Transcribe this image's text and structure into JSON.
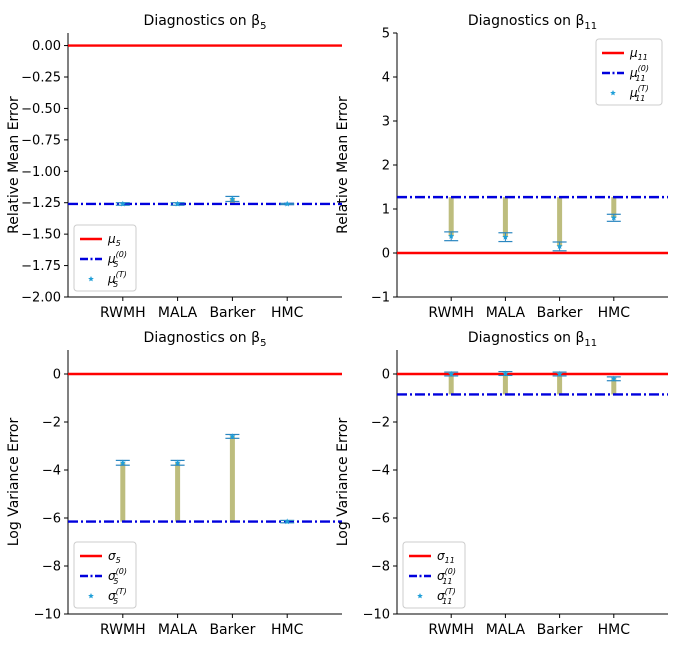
{
  "colors": {
    "true_line": "#ff0000",
    "init_line": "#0000dd",
    "bar": "#bdbd7e",
    "marker": "#1f9fd8",
    "error_cap": "#2a86c0"
  },
  "chart_data": [
    {
      "id": "top-left",
      "type": "scatter",
      "title": "Diagnostics on β",
      "title_sub": "5",
      "ylabel": "Relative Mean Error",
      "categories": [
        "RWMH",
        "MALA",
        "Barker",
        "HMC"
      ],
      "ylim": [
        -2.0,
        0.1
      ],
      "yticks": [
        0.0,
        -0.25,
        -0.5,
        -0.75,
        -1.0,
        -1.25,
        -1.5,
        -1.75,
        -2.0
      ],
      "ytick_labels": [
        "0.00",
        "−0.25",
        "−0.50",
        "−0.75",
        "−1.00",
        "−1.25",
        "−1.50",
        "−1.75",
        "−2.00"
      ],
      "true_value": 0.0,
      "init_value": -1.26,
      "estimates": [
        -1.26,
        -1.26,
        -1.22,
        -1.26
      ],
      "ci_low": [
        -1.27,
        -1.27,
        -1.24,
        -1.265
      ],
      "ci_high": [
        -1.25,
        -1.25,
        -1.2,
        -1.255
      ],
      "legend_position": "lower-left",
      "legend": [
        {
          "kind": "solid",
          "label": "μ",
          "sub": "5",
          "sup": ""
        },
        {
          "kind": "dashdot",
          "label": "μ",
          "sub": "5",
          "sup": "(0)"
        },
        {
          "kind": "star",
          "label": "μ",
          "sub": "5",
          "sup": "(T)"
        }
      ]
    },
    {
      "id": "top-right",
      "type": "scatter",
      "title": "Diagnostics on β",
      "title_sub": "11",
      "ylabel": "Relative Mean Error",
      "categories": [
        "RWMH",
        "MALA",
        "Barker",
        "HMC"
      ],
      "ylim": [
        -1,
        5
      ],
      "yticks": [
        -1,
        0,
        1,
        2,
        3,
        4,
        5
      ],
      "ytick_labels": [
        "−1",
        "0",
        "1",
        "2",
        "3",
        "4",
        "5"
      ],
      "true_value": 0.0,
      "init_value": 1.27,
      "estimates": [
        0.38,
        0.36,
        0.15,
        0.8
      ],
      "ci_low": [
        0.28,
        0.26,
        0.05,
        0.72
      ],
      "ci_high": [
        0.48,
        0.46,
        0.25,
        0.88
      ],
      "legend_position": "top-right",
      "legend": [
        {
          "kind": "solid",
          "label": "μ",
          "sub": "11",
          "sup": ""
        },
        {
          "kind": "dashdot",
          "label": "μ",
          "sub": "11",
          "sup": "(0)"
        },
        {
          "kind": "star",
          "label": "μ",
          "sub": "11",
          "sup": "(T)"
        }
      ]
    },
    {
      "id": "bottom-left",
      "type": "scatter",
      "title": "Diagnostics on β",
      "title_sub": "5",
      "ylabel": "Log Variance Error",
      "categories": [
        "RWMH",
        "MALA",
        "Barker",
        "HMC"
      ],
      "ylim": [
        -10,
        1
      ],
      "yticks": [
        0,
        -2,
        -4,
        -6,
        -8,
        -10
      ],
      "ytick_labels": [
        "0",
        "−2",
        "−4",
        "−6",
        "−8",
        "−10"
      ],
      "true_value": 0.0,
      "init_value": -6.15,
      "estimates": [
        -3.7,
        -3.7,
        -2.6,
        -6.15
      ],
      "ci_low": [
        -3.8,
        -3.8,
        -2.68,
        -6.2
      ],
      "ci_high": [
        -3.6,
        -3.6,
        -2.52,
        -6.1
      ],
      "legend_position": "lower-left",
      "legend": [
        {
          "kind": "solid",
          "label": "σ",
          "sub": "5",
          "sup": ""
        },
        {
          "kind": "dashdot",
          "label": "σ",
          "sub": "5",
          "sup": "(0)"
        },
        {
          "kind": "star",
          "label": "σ",
          "sub": "5",
          "sup": "(T)"
        }
      ]
    },
    {
      "id": "bottom-right",
      "type": "scatter",
      "title": "Diagnostics on β",
      "title_sub": "11",
      "ylabel": "Log Variance Error",
      "categories": [
        "RWMH",
        "MALA",
        "Barker",
        "HMC"
      ],
      "ylim": [
        -10,
        1
      ],
      "yticks": [
        0,
        -2,
        -4,
        -6,
        -8,
        -10
      ],
      "ytick_labels": [
        "0",
        "−2",
        "−4",
        "−6",
        "−8",
        "−10"
      ],
      "true_value": 0.0,
      "init_value": -0.85,
      "estimates": [
        0.0,
        0.02,
        0.0,
        -0.2
      ],
      "ci_low": [
        -0.08,
        -0.06,
        -0.08,
        -0.28
      ],
      "ci_high": [
        0.08,
        0.1,
        0.08,
        -0.12
      ],
      "legend_position": "lower-left",
      "legend": [
        {
          "kind": "solid",
          "label": "σ",
          "sub": "11",
          "sup": ""
        },
        {
          "kind": "dashdot",
          "label": "σ",
          "sub": "11",
          "sup": "(0)"
        },
        {
          "kind": "star",
          "label": "σ",
          "sub": "11",
          "sup": "(T)"
        }
      ]
    }
  ]
}
